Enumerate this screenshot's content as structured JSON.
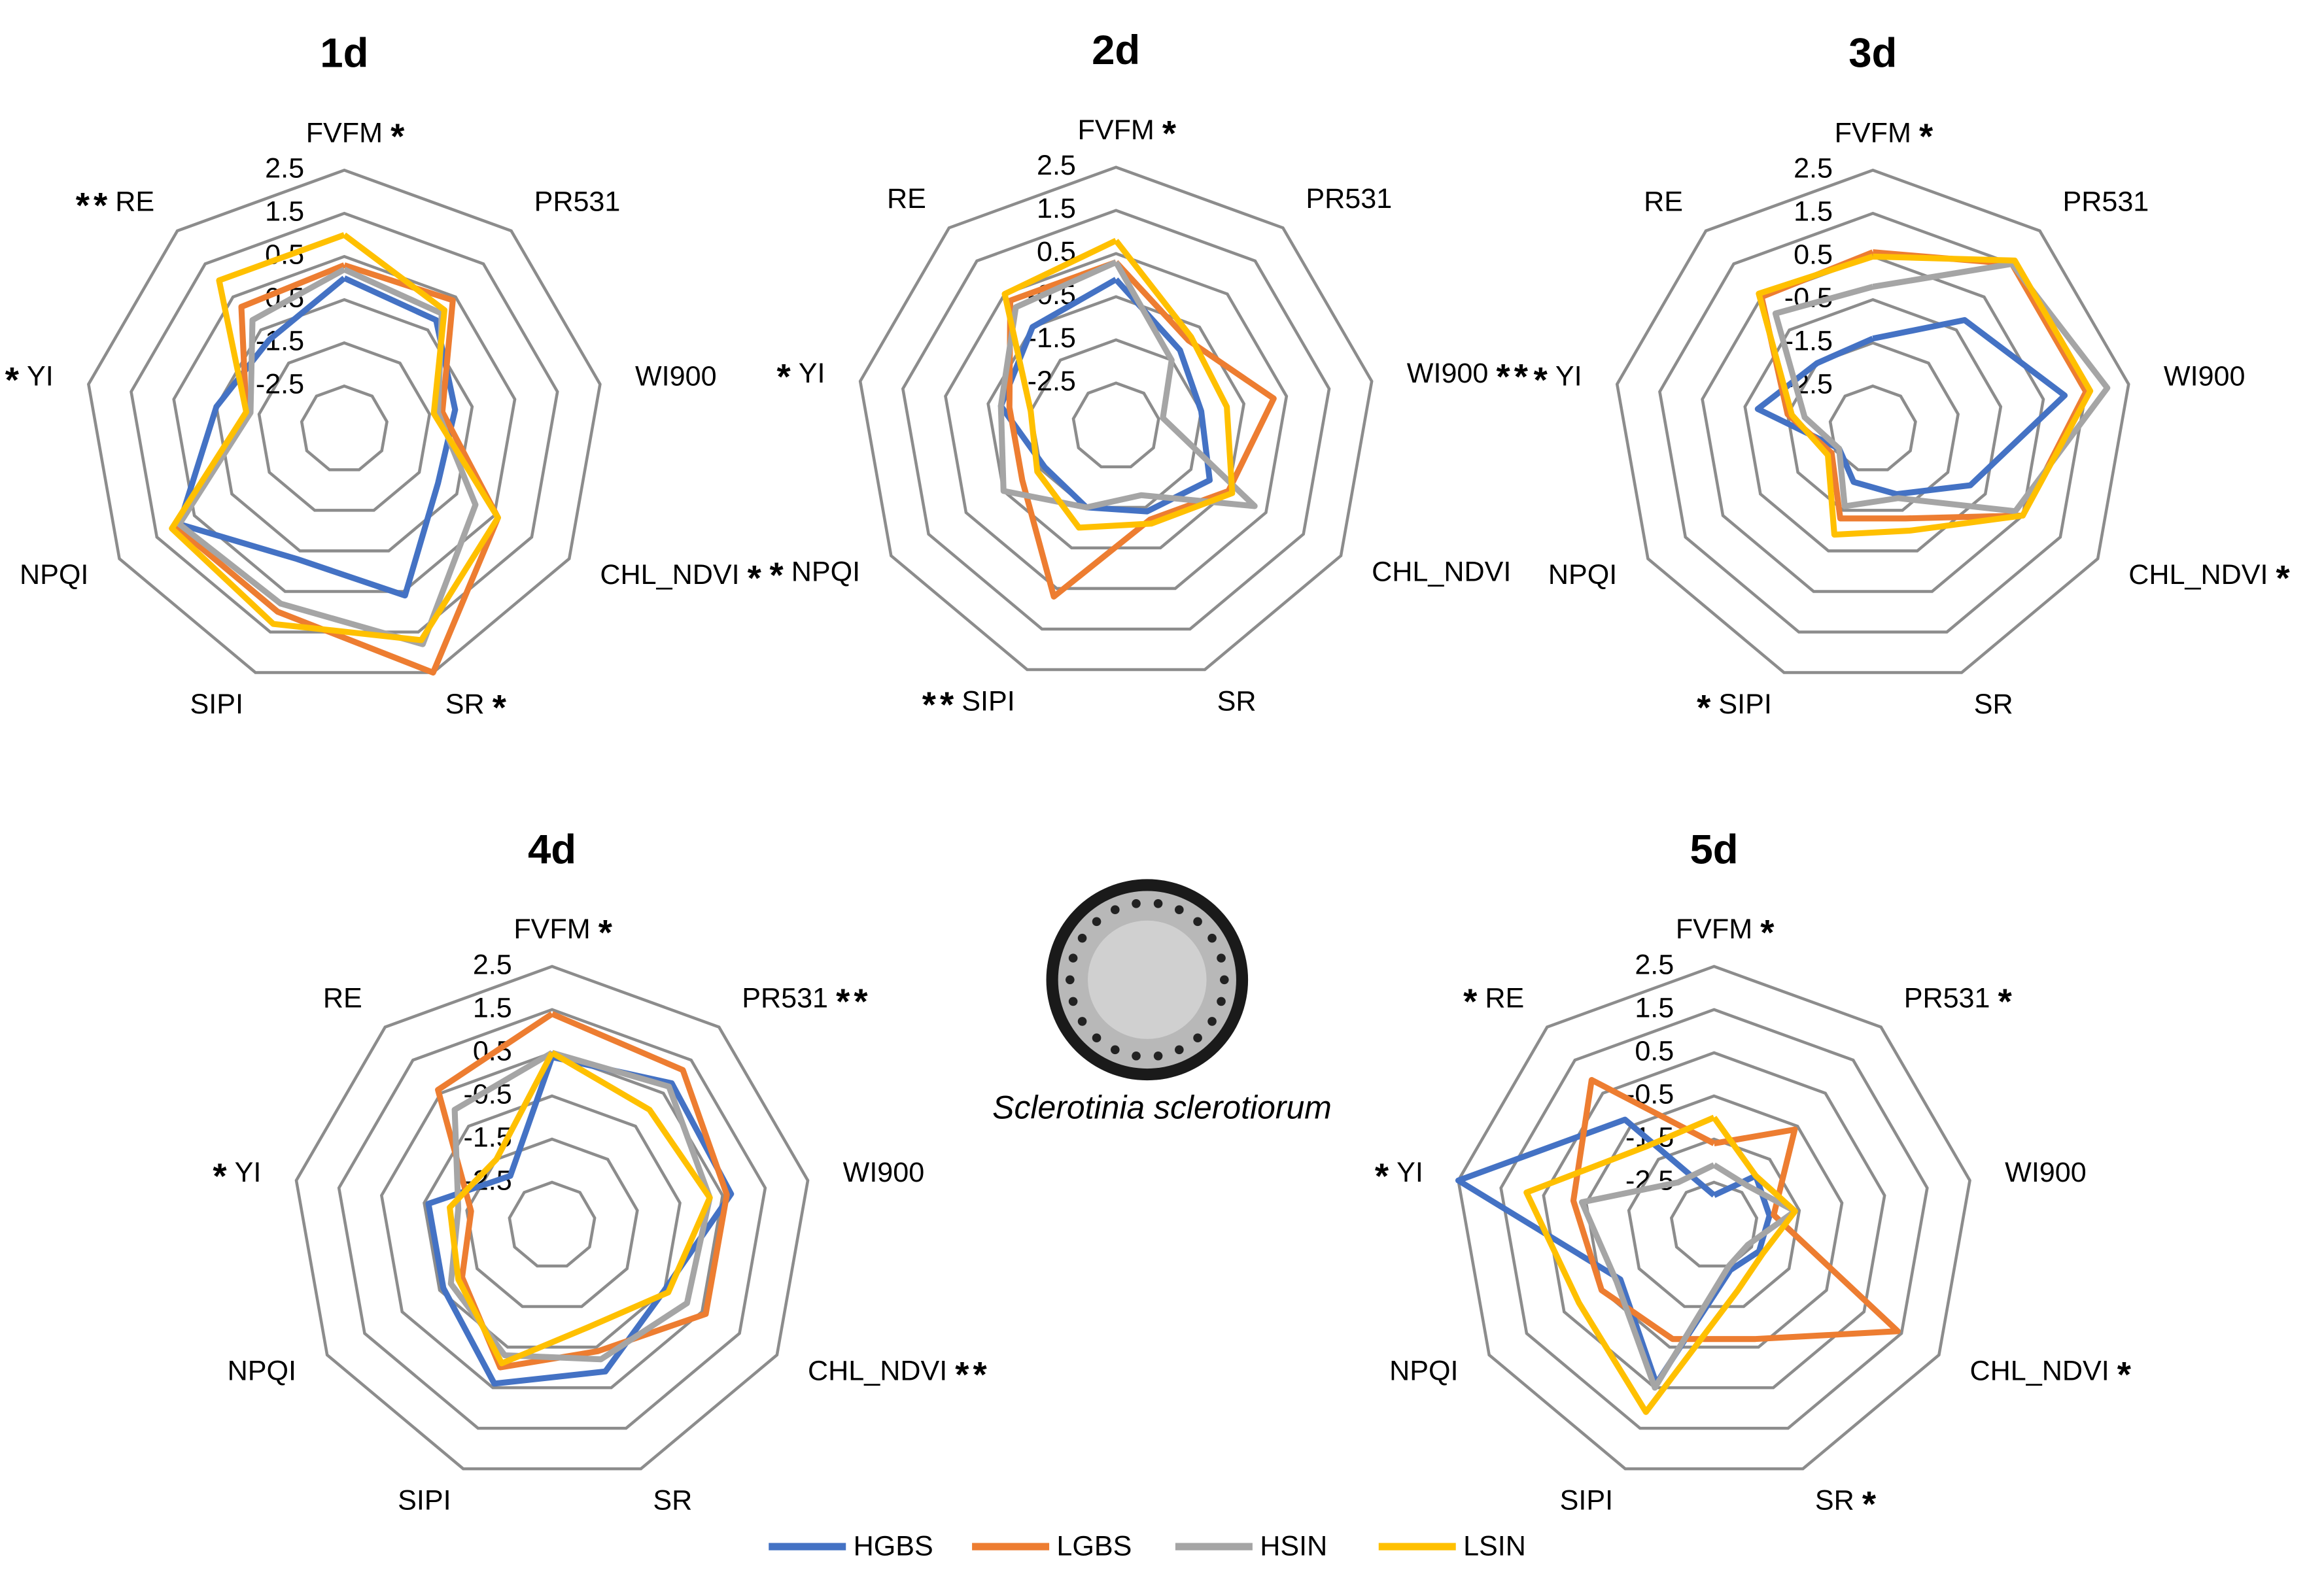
{
  "chart_data": [
    {
      "type": "radar",
      "title": "1d",
      "categories": [
        "FVFM",
        "PR531",
        "WI900",
        "CHL_NDVI",
        "SR",
        "SIPI",
        "NPQI",
        "YI",
        "RE"
      ],
      "rlim": [
        -3.5,
        2.5
      ],
      "rticks": [
        2.5,
        1.5,
        0.5,
        -0.5,
        -1.5,
        -2.5
      ],
      "series": [
        {
          "values": [
            0.0,
            -0.2,
            -0.9,
            -1.0,
            0.6,
            -0.3,
            0.9,
            -0.5,
            -0.8
          ]
        },
        {
          "values": [
            0.3,
            0.4,
            -1.2,
            0.6,
            2.5,
            1.0,
            1.0,
            -1.2,
            0.2
          ]
        },
        {
          "values": [
            0.2,
            0.0,
            -1.3,
            0.0,
            1.8,
            0.8,
            0.9,
            -1.3,
            -0.2
          ]
        },
        {
          "values": [
            1.0,
            0.1,
            -1.4,
            0.6,
            1.7,
            1.3,
            1.1,
            -1.2,
            1.0
          ]
        }
      ],
      "asterisks": [
        {
          "axis": 0,
          "text": "*",
          "color": "#e0202a"
        },
        {
          "axis": 8,
          "text": "*",
          "color": "#000000"
        },
        {
          "axis": 8,
          "text": "*",
          "color": "#e0202a"
        },
        {
          "axis": 7,
          "text": "*",
          "color": "#000000"
        },
        {
          "axis": 3,
          "text": "*",
          "color": "#000000"
        },
        {
          "axis": 4,
          "text": "*",
          "color": "#000000"
        }
      ]
    },
    {
      "type": "radar",
      "title": "2d",
      "categories": [
        "FVFM",
        "PR531",
        "WI900",
        "CHL_NDVI",
        "SR",
        "SIPI",
        "NPQI",
        "YI",
        "RE"
      ],
      "rlim": [
        -3.5,
        2.5
      ],
      "rticks": [
        2.5,
        1.5,
        0.5,
        -0.5,
        -1.5,
        -2.5
      ],
      "series": [
        {
          "values": [
            -0.1,
            -1.2,
            -1.5,
            -1.0,
            -1.4,
            -1.5,
            -1.6,
            -0.8,
            -0.5
          ]
        },
        {
          "values": [
            0.3,
            -0.9,
            0.2,
            -0.5,
            -1.2,
            0.7,
            -1.0,
            -1.0,
            0.3
          ]
        },
        {
          "values": [
            0.3,
            -1.5,
            -2.4,
            0.2,
            -1.8,
            -1.5,
            -0.5,
            -0.8,
            0.1
          ]
        },
        {
          "values": [
            0.8,
            -0.8,
            -0.9,
            -0.4,
            -1.1,
            -1.0,
            -1.4,
            -1.5,
            0.5
          ]
        }
      ],
      "asterisks": [
        {
          "axis": 0,
          "text": "*",
          "color": "#e0202a"
        },
        {
          "axis": 2,
          "text": "*",
          "color": "#000000"
        },
        {
          "axis": 2,
          "text": "*",
          "color": "#e0202a"
        },
        {
          "axis": 7,
          "text": "*",
          "color": "#000000"
        },
        {
          "axis": 6,
          "text": "*",
          "color": "#000000"
        },
        {
          "axis": 5,
          "text": "*",
          "color": "#000000"
        },
        {
          "axis": 5,
          "text": "*",
          "color": "#e0202a"
        }
      ]
    },
    {
      "type": "radar",
      "title": "3d",
      "categories": [
        "FVFM",
        "PR531",
        "WI900",
        "CHL_NDVI",
        "SR",
        "SIPI",
        "NPQI",
        "YI",
        "RE"
      ],
      "rlim": [
        -3.5,
        2.5
      ],
      "rticks": [
        2.5,
        1.5,
        0.5,
        -0.5,
        -1.5,
        -2.5
      ],
      "series": [
        {
          "values": [
            -1.4,
            -0.2,
            1.0,
            -0.9,
            -1.9,
            -2.2,
            -2.6,
            -0.8,
            -1.5
          ]
        },
        {
          "values": [
            0.6,
            1.5,
            1.5,
            0.5,
            -1.3,
            -1.3,
            -2.4,
            -1.5,
            0.5
          ]
        },
        {
          "values": [
            -0.2,
            1.5,
            2.0,
            0.3,
            -1.8,
            -1.6,
            -2.6,
            -1.9,
            0.0
          ]
        },
        {
          "values": [
            0.5,
            1.6,
            1.6,
            0.5,
            -1.0,
            -0.9,
            -2.3,
            -1.6,
            0.6
          ]
        }
      ],
      "asterisks": [
        {
          "axis": 0,
          "text": "*",
          "color": "#000000"
        },
        {
          "axis": 7,
          "text": "*",
          "color": "#000000"
        },
        {
          "axis": 3,
          "text": "*",
          "color": "#000000"
        },
        {
          "axis": 5,
          "text": "*",
          "color": "#e0202a"
        }
      ]
    },
    {
      "type": "radar",
      "title": "4d",
      "categories": [
        "FVFM",
        "PR531",
        "WI900",
        "CHL_NDVI",
        "SR",
        "SIPI",
        "NPQI",
        "YI",
        "RE"
      ],
      "rlim": [
        -3.5,
        2.5
      ],
      "rticks": [
        2.5,
        1.5,
        0.5,
        -0.5,
        -1.5,
        -2.5
      ],
      "series": [
        {
          "values": [
            0.4,
            0.8,
            0.7,
            -0.5,
            0.1,
            0.4,
            -0.6,
            -0.6,
            -2.0
          ]
        },
        {
          "values": [
            1.4,
            1.2,
            0.6,
            0.6,
            -0.4,
            0.0,
            -1.1,
            -1.6,
            0.6
          ]
        },
        {
          "values": [
            0.5,
            0.7,
            0.2,
            0.1,
            -0.2,
            -0.3,
            -0.8,
            -1.3,
            0.0
          ]
        },
        {
          "values": [
            0.5,
            0.0,
            0.2,
            -0.4,
            -1.0,
            -0.1,
            -1.0,
            -1.1,
            -1.5
          ]
        }
      ],
      "asterisks": [
        {
          "axis": 0,
          "text": "*",
          "color": "#000000"
        },
        {
          "axis": 1,
          "text": "*",
          "color": "#000000"
        },
        {
          "axis": 1,
          "text": "*",
          "color": "#e0202a"
        },
        {
          "axis": 7,
          "text": "*",
          "color": "#000000"
        },
        {
          "axis": 3,
          "text": "*",
          "color": "#000000"
        },
        {
          "axis": 3,
          "text": "*",
          "color": "#e0202a"
        }
      ]
    },
    {
      "type": "radar",
      "title": "5d",
      "categories": [
        "FVFM",
        "PR531",
        "WI900",
        "CHL_NDVI",
        "SR",
        "SIPI",
        "NPQI",
        "YI",
        "RE"
      ],
      "rlim": [
        -3.5,
        2.5
      ],
      "rticks": [
        2.5,
        1.5,
        0.5,
        -0.5,
        -1.5,
        -2.5
      ],
      "series": [
        {
          "values": [
            -2.8,
            -2.0,
            -2.2,
            -2.3,
            -2.4,
            0.4,
            -1.0,
            2.5,
            -0.3
          ]
        },
        {
          "values": [
            -1.6,
            -0.6,
            -2.1,
            1.4,
            -0.7,
            -0.7,
            -0.5,
            -0.2,
            0.9
          ]
        },
        {
          "values": [
            -2.1,
            -2.3,
            -1.6,
            -2.6,
            -2.5,
            0.5,
            -0.9,
            -0.4,
            -2.2
          ]
        },
        {
          "values": [
            -1.0,
            -2.0,
            -1.6,
            -2.2,
            -1.9,
            1.1,
            0.1,
            0.9,
            -1.1
          ]
        }
      ],
      "asterisks": [
        {
          "axis": 0,
          "text": "*",
          "color": "#000000"
        },
        {
          "axis": 8,
          "text": "*",
          "color": "#000000"
        },
        {
          "axis": 1,
          "text": "*",
          "color": "#000000"
        },
        {
          "axis": 7,
          "text": "*",
          "color": "#000000"
        },
        {
          "axis": 3,
          "text": "*",
          "color": "#000000"
        },
        {
          "axis": 4,
          "text": "*",
          "color": "#000000"
        }
      ]
    }
  ],
  "legend": [
    {
      "name": "HGBS",
      "color": "#4472c4"
    },
    {
      "name": "LGBS",
      "color": "#ed7d31"
    },
    {
      "name": "HSIN",
      "color": "#a5a5a5"
    },
    {
      "name": "LSIN",
      "color": "#ffc000"
    }
  ],
  "image_caption": "Sclerotinia sclerotiorum"
}
